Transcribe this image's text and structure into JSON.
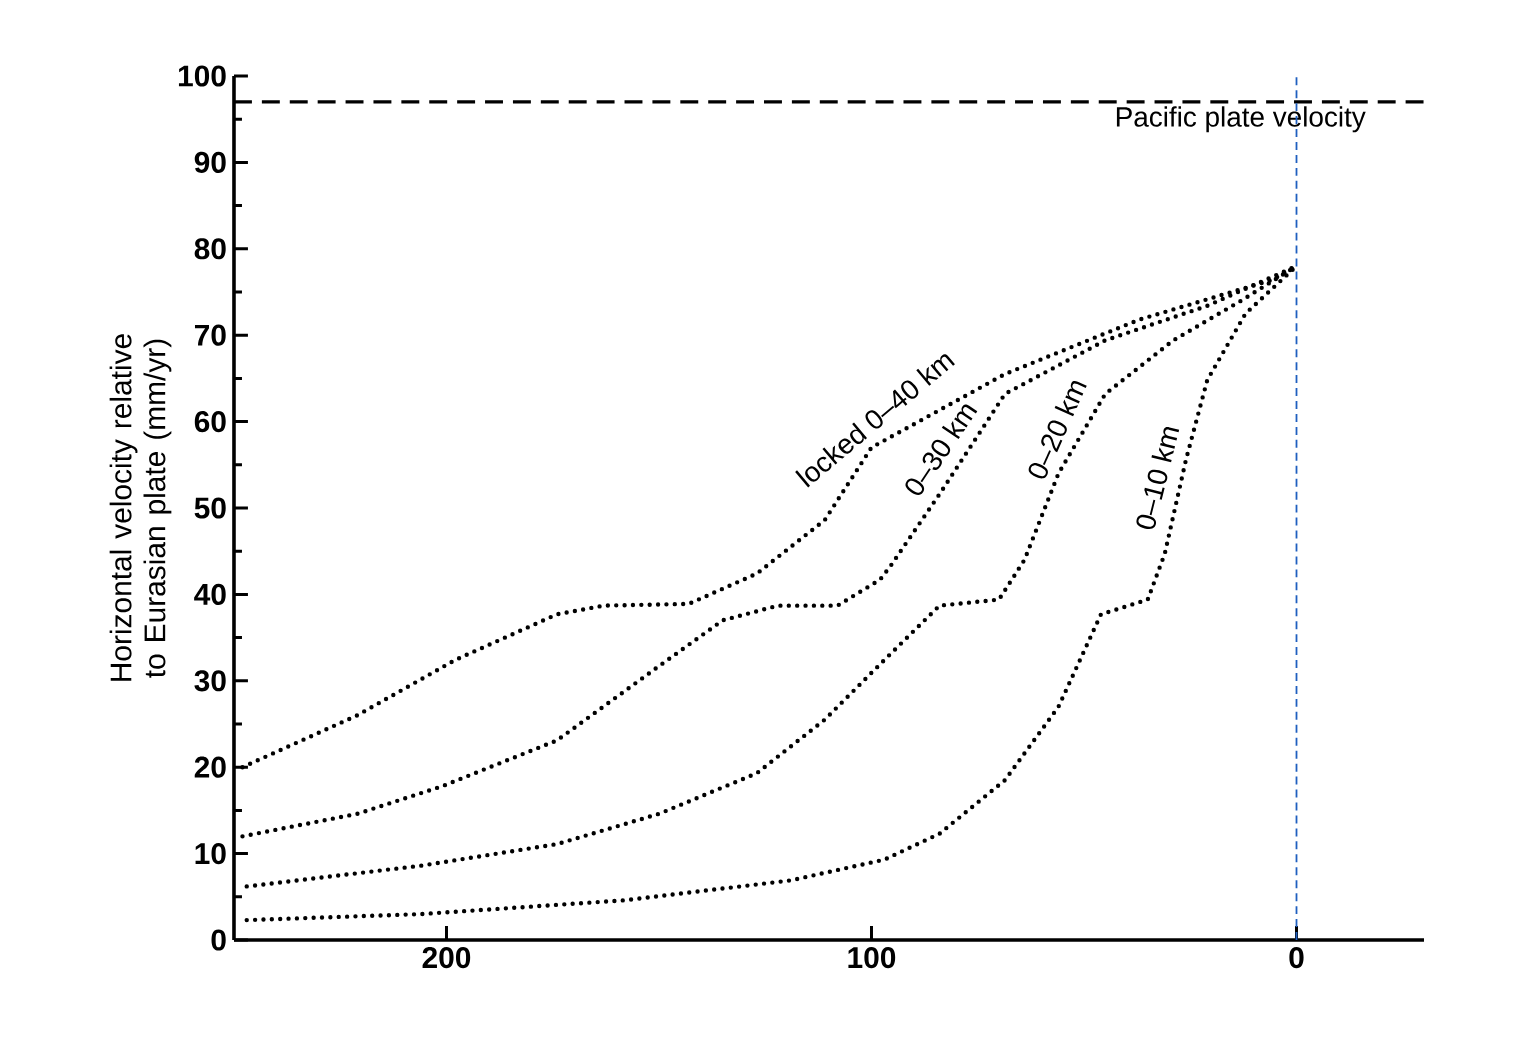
{
  "chart_data": {
    "type": "line",
    "ylabel": "Horizontal velocity relative to Eurasian plate (mm/yr)",
    "xlim": [
      250,
      -30
    ],
    "xticks": [
      200,
      100,
      0
    ],
    "ylim": [
      0,
      100
    ],
    "yticks": [
      0,
      10,
      20,
      30,
      40,
      50,
      60,
      70,
      80,
      90,
      100
    ],
    "marker": "none",
    "line_style": "dotted",
    "series": [
      {
        "name": "locked 0–40 km",
        "color": "#000000",
        "x": [
          248,
          221,
          198,
          174,
          163,
          143,
          127,
          111,
          100,
          68.6,
          37,
          5.7,
          0
        ],
        "values": [
          20,
          26,
          32.4,
          37.7,
          38.7,
          38.9,
          42.4,
          48.6,
          57,
          65.5,
          71.8,
          76.4,
          78
        ]
      },
      {
        "name": "0–30 km",
        "color": "#000000",
        "x": [
          248,
          221,
          201,
          174,
          150,
          135,
          122,
          108,
          98,
          95.5,
          84,
          68.6,
          45,
          21,
          0
        ],
        "values": [
          12,
          14.6,
          17.8,
          23.1,
          31.7,
          37,
          38.7,
          38.7,
          41.7,
          43.3,
          51.6,
          63.2,
          69.4,
          73.4,
          78
        ]
      },
      {
        "name": "0–20 km",
        "color": "#000000",
        "x": [
          247,
          206,
          174,
          150,
          127,
          111,
          97,
          84,
          70,
          64,
          56,
          45,
          29,
          13,
          0
        ],
        "values": [
          6.2,
          8.6,
          11.1,
          14.6,
          19.3,
          25.5,
          32.4,
          38.7,
          39.4,
          44,
          54,
          63.2,
          69.4,
          74,
          78
        ]
      },
      {
        "name": "0–10 km",
        "color": "#000000",
        "x": [
          247,
          206,
          158,
          119,
          97,
          84,
          68.6,
          56,
          46,
          35,
          31,
          26,
          21,
          12,
          0
        ],
        "values": [
          2.3,
          3,
          4.6,
          6.9,
          9.3,
          12.3,
          18.5,
          27,
          37.7,
          39.4,
          44.7,
          55.6,
          64.8,
          72.5,
          78
        ]
      }
    ],
    "ref_lines": [
      {
        "axis": "y",
        "value": 97,
        "label": "Pacific plate velocity",
        "color": "#000000",
        "line_style": "dashed"
      },
      {
        "axis": "x",
        "value": 0,
        "color": "#1f5fbf",
        "line_style": "dashed"
      }
    ]
  }
}
